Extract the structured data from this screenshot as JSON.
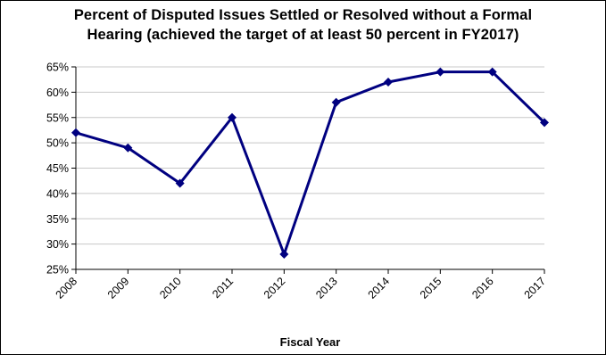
{
  "chart_data": {
    "type": "line",
    "title_line1": "Percent of Disputed Issues Settled or Resolved without a Formal",
    "title_line2": "Hearing (achieved the target of at least 50 percent in FY2017)",
    "xlabel": "Fiscal Year",
    "ylabel": "",
    "categories": [
      "2008",
      "2009",
      "2010",
      "2011",
      "2012",
      "2013",
      "2014",
      "2015",
      "2016",
      "2017"
    ],
    "series": [
      {
        "values": [
          52,
          49,
          42,
          55,
          28,
          58,
          62,
          64,
          64,
          54
        ]
      }
    ],
    "ylim": [
      25,
      65
    ],
    "yticks": [
      25,
      30,
      35,
      40,
      45,
      50,
      55,
      60,
      65
    ],
    "ytick_labels": [
      "25%",
      "30%",
      "35%",
      "40%",
      "45%",
      "50%",
      "55%",
      "60%",
      "65%"
    ],
    "grid": true,
    "line_color": "#000080"
  }
}
